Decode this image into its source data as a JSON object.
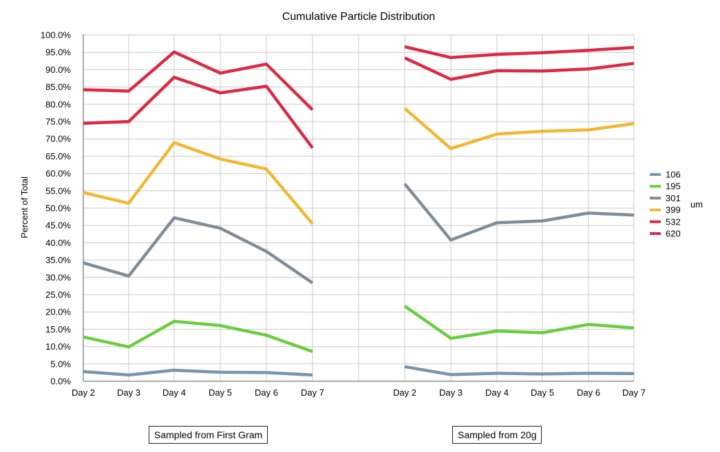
{
  "chart_data": {
    "type": "line",
    "title": "Cumulative Particle Distribution",
    "ylabel": "Percent of Total",
    "ylim": [
      0,
      100
    ],
    "y_ticks": [
      "0.0%",
      "5.0%",
      "10.0%",
      "15.0%",
      "20.0%",
      "25.0%",
      "30.0%",
      "35.0%",
      "40.0%",
      "45.0%",
      "50.0%",
      "55.0%",
      "60.0%",
      "65.0%",
      "70.0%",
      "75.0%",
      "80.0%",
      "85.0%",
      "90.0%",
      "95.0%",
      "100.0%"
    ],
    "grid": true,
    "legend_position": "right",
    "legend_unit": "um",
    "panels": [
      {
        "caption": "Sampled from First Gram",
        "categories": [
          "Day 2",
          "Day 3",
          "Day 4",
          "Day 5",
          "Day 6",
          "Day 7"
        ],
        "series": [
          {
            "name": "106",
            "color": "#7895ae",
            "values": [
              2.8,
              1.8,
              3.2,
              2.6,
              2.5,
              1.8
            ]
          },
          {
            "name": "195",
            "color": "#6bcd3f",
            "values": [
              12.8,
              9.9,
              17.3,
              16.1,
              13.3,
              8.6
            ]
          },
          {
            "name": "301",
            "color": "#7f8d9a",
            "values": [
              34.2,
              30.4,
              47.2,
              44.2,
              37.5,
              28.4
            ]
          },
          {
            "name": "399",
            "color": "#f2b732",
            "values": [
              54.5,
              51.4,
              68.9,
              64.2,
              61.3,
              45.5
            ]
          },
          {
            "name": "532",
            "color": "#dc2a44",
            "values": [
              74.5,
              75.0,
              87.8,
              83.3,
              85.2,
              67.4
            ]
          },
          {
            "name": "620",
            "color": "#dc2a44",
            "values": [
              84.2,
              83.8,
              95.1,
              89.0,
              91.6,
              78.4
            ]
          }
        ]
      },
      {
        "caption": "Sampled from 20g",
        "categories": [
          "Day 2",
          "Day 3",
          "Day 4",
          "Day 5",
          "Day 6",
          "Day 7"
        ],
        "series": [
          {
            "name": "106",
            "color": "#7895ae",
            "values": [
              4.2,
              1.9,
              2.3,
              2.1,
              2.3,
              2.2
            ]
          },
          {
            "name": "195",
            "color": "#6bcd3f",
            "values": [
              21.7,
              12.4,
              14.5,
              14.0,
              16.4,
              15.4
            ]
          },
          {
            "name": "301",
            "color": "#7f8d9a",
            "values": [
              57.0,
              40.8,
              45.8,
              46.3,
              48.6,
              48.0
            ]
          },
          {
            "name": "399",
            "color": "#f2b732",
            "values": [
              78.8,
              67.2,
              71.4,
              72.2,
              72.6,
              74.4
            ]
          },
          {
            "name": "532",
            "color": "#dc2a44",
            "values": [
              93.4,
              87.2,
              89.7,
              89.6,
              90.2,
              91.8
            ]
          },
          {
            "name": "620",
            "color": "#dc2a44",
            "values": [
              96.6,
              93.5,
              94.4,
              94.9,
              95.6,
              96.4
            ]
          }
        ]
      }
    ]
  }
}
